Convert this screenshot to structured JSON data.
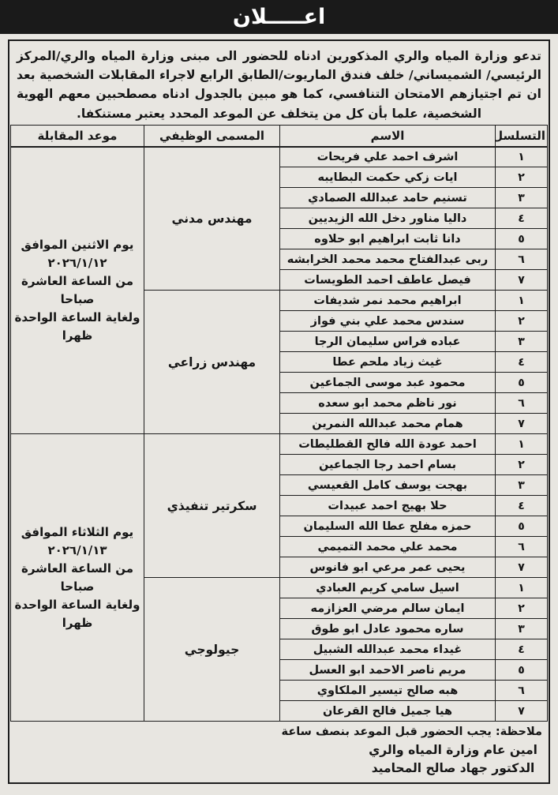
{
  "page": {
    "title": "اعـــــلان",
    "intro": "تدعو وزارة المياه والري المذكورين ادناه للحضور الى مبنى وزارة المياه والري/المركز الرئيسي/ الشميساني/ خلف فندق الماريوت/الطابق الرابع لاجراء المقابلات الشخصية بعد ان تم اجتيازهم الامتحان التنافسي، كما هو مبين بالجدول ادناه مصطحبين معهم الهوية الشخصية، علما بأن كل من يتخلف عن الموعد المحدد يعتبر مستنكفا."
  },
  "table": {
    "headers": {
      "serial": "التسلسل",
      "name": "الاسم",
      "job": "المسمى الوظيفي",
      "date": "موعد المقابلة"
    },
    "serials": [
      "١",
      "٢",
      "٣",
      "٤",
      "٥",
      "٦",
      "٧"
    ],
    "schedules": [
      {
        "date_lines": [
          "يوم الاثنين الموافق",
          "٢٠٢٦/١/١٢",
          "من الساعة العاشرة",
          "صباحا",
          "ولغاية الساعة الواحدة",
          "ظهرا"
        ],
        "groups": [
          {
            "job": "مهندس مدني",
            "candidates": [
              "اشرف احمد علي فريحات",
              "ايات زكي حكمت البطايبه",
              "تسنيم حامد عبدالله الصمادي",
              "داليا مناور دخل الله الزيديين",
              "دانا ثابت ابراهيم ابو حلاوه",
              "ربى عبدالفتاح محمد محمد الخرابشه",
              "فيصل عاطف احمد الطويسات"
            ]
          },
          {
            "job": "مهندس زراعي",
            "candidates": [
              "ابراهيم محمد نمر شديفات",
              "سندس محمد علي بني فواز",
              "عباده فراس سليمان الرجا",
              "غيث زياد ملحم عطا",
              "محمود عبد موسى الجماعين",
              "نور ناظم محمد ابو سعده",
              "همام محمد عبدالله النمرين"
            ]
          }
        ]
      },
      {
        "date_lines": [
          "يوم الثلاثاء الموافق",
          "٢٠٢٦/١/١٣",
          "من الساعة العاشرة",
          "صباحا",
          "ولغاية الساعة الواحدة",
          "ظهرا"
        ],
        "groups": [
          {
            "job": "سكرتير تنفيذي",
            "candidates": [
              "احمد عودة الله فالح القطليطات",
              "بسام احمد رجا الجماعين",
              "بهجت يوسف كامل القعيسي",
              "حلا بهيج احمد عبيدات",
              "حمزه مفلح عطا الله السليمان",
              "محمد علي محمد التميمي",
              "يحيى عمر مرعي ابو فانوس"
            ]
          },
          {
            "job": "جيولوجي",
            "candidates": [
              "اسيل سامي كريم العبادي",
              "ايمان سالم مرضي العزازمه",
              "ساره محمود عادل ابو طوق",
              "غيداء محمد عبدالله الشبيل",
              "مريم ناصر الاحمد ابو العسل",
              "هبه صالح تيسير الملكاوي",
              "هيا جميل فالح القرعان"
            ]
          }
        ]
      }
    ]
  },
  "footer": {
    "note": "ملاحظة: يجب الحضور قبل الموعد بنصف ساعة",
    "sign_line1": "امين عام وزارة المياه والري",
    "sign_line2": "الدكتور جهاد صالح المحاميد"
  },
  "colors": {
    "page_bg": "#e8e6e1",
    "bar_bg": "#1a1a1a",
    "bar_text": "#ffffff",
    "text": "#161616",
    "border": "#1d1d1d"
  }
}
